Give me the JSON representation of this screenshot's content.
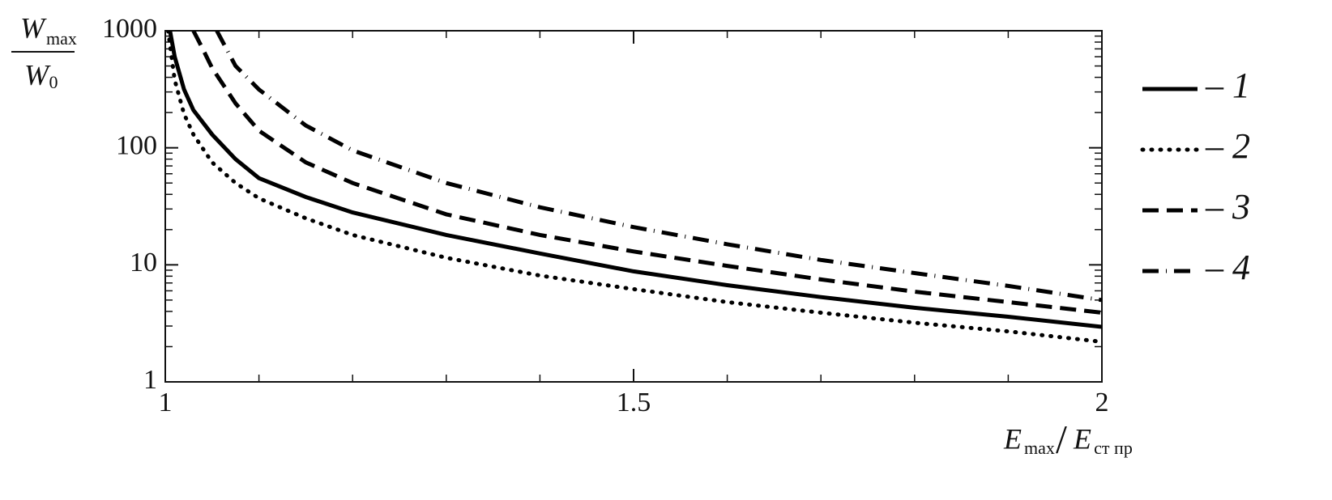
{
  "chart_data": {
    "type": "line",
    "y_label": {
      "numerator": {
        "main": "W",
        "sub": "max"
      },
      "denominator": {
        "main": "W",
        "sub": "0"
      }
    },
    "x_label": {
      "numerator": {
        "main": "E",
        "sub": "max"
      },
      "separator": "/",
      "denominator": {
        "main": "E",
        "sub": "ст пр"
      }
    },
    "log_y": true,
    "xlim": [
      1,
      2
    ],
    "ylim": [
      1,
      1000
    ],
    "xticks": [
      {
        "value": 1,
        "label": "1"
      },
      {
        "value": 1.5,
        "label": "1.5"
      },
      {
        "value": 2,
        "label": "2"
      }
    ],
    "yticks": [
      1,
      10,
      100,
      1000
    ],
    "legend": "right",
    "series": [
      {
        "name": "– 1",
        "color": "#000000",
        "style": "solid",
        "x": [
          1.005,
          1.01,
          1.02,
          1.03,
          1.05,
          1.075,
          1.1,
          1.15,
          1.2,
          1.3,
          1.4,
          1.5,
          1.6,
          1.7,
          1.8,
          1.9,
          2.0
        ],
        "values": [
          1000,
          600,
          316,
          210,
          130,
          80,
          55,
          38,
          28,
          18,
          12.5,
          8.8,
          6.7,
          5.3,
          4.3,
          3.6,
          2.95
        ]
      },
      {
        "name": "– 2",
        "color": "#000000",
        "style": "dotted",
        "x": [
          1.003,
          1.01,
          1.02,
          1.03,
          1.05,
          1.075,
          1.1,
          1.15,
          1.2,
          1.3,
          1.4,
          1.5,
          1.6,
          1.7,
          1.8,
          1.9,
          2.0
        ],
        "values": [
          1000,
          380,
          195,
          130,
          75,
          50,
          37,
          25,
          18,
          11.5,
          8.1,
          6.2,
          4.8,
          3.9,
          3.2,
          2.7,
          2.2
        ]
      },
      {
        "name": "– 3",
        "color": "#000000",
        "style": "dashed",
        "x": [
          1.03,
          1.04,
          1.05,
          1.075,
          1.1,
          1.15,
          1.2,
          1.3,
          1.4,
          1.5,
          1.6,
          1.7,
          1.8,
          1.9,
          2.0
        ],
        "values": [
          1000,
          700,
          480,
          240,
          140,
          75,
          50,
          27,
          18,
          13,
          9.8,
          7.5,
          5.9,
          4.8,
          3.9
        ]
      },
      {
        "name": "– 4",
        "color": "#000000",
        "style": "dashdot",
        "x": [
          1.055,
          1.075,
          1.1,
          1.15,
          1.2,
          1.3,
          1.4,
          1.5,
          1.6,
          1.7,
          1.8,
          1.9,
          2.0
        ],
        "values": [
          1000,
          500,
          315,
          155,
          95,
          50,
          31,
          21,
          15,
          11,
          8.5,
          6.6,
          5.0
        ]
      }
    ]
  }
}
